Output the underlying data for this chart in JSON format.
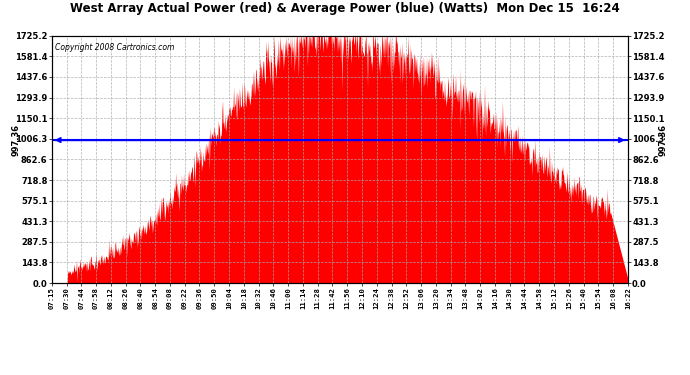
{
  "title": "West Array Actual Power (red) & Average Power (blue) (Watts)  Mon Dec 15  16:24",
  "copyright": "Copyright 2008 Cartronics.com",
  "yticks": [
    0.0,
    143.8,
    287.5,
    431.3,
    575.1,
    718.8,
    862.6,
    1006.3,
    1150.1,
    1293.9,
    1437.6,
    1581.4,
    1725.2
  ],
  "ymax": 1725.2,
  "ymin": 0.0,
  "average_power": 997.36,
  "fill_color": "#FF0000",
  "line_color": "#0000FF",
  "background_color": "#FFFFFF",
  "grid_color": "#AAAAAA",
  "xtick_labels": [
    "07:15",
    "07:30",
    "07:44",
    "07:58",
    "08:12",
    "08:26",
    "08:40",
    "08:54",
    "09:08",
    "09:22",
    "09:36",
    "09:50",
    "10:04",
    "10:18",
    "10:32",
    "10:46",
    "11:00",
    "11:14",
    "11:28",
    "11:42",
    "11:56",
    "12:10",
    "12:24",
    "12:38",
    "12:52",
    "13:06",
    "13:20",
    "13:34",
    "13:48",
    "14:02",
    "14:16",
    "14:30",
    "14:44",
    "14:58",
    "15:12",
    "15:26",
    "15:40",
    "15:54",
    "16:08",
    "16:22"
  ]
}
